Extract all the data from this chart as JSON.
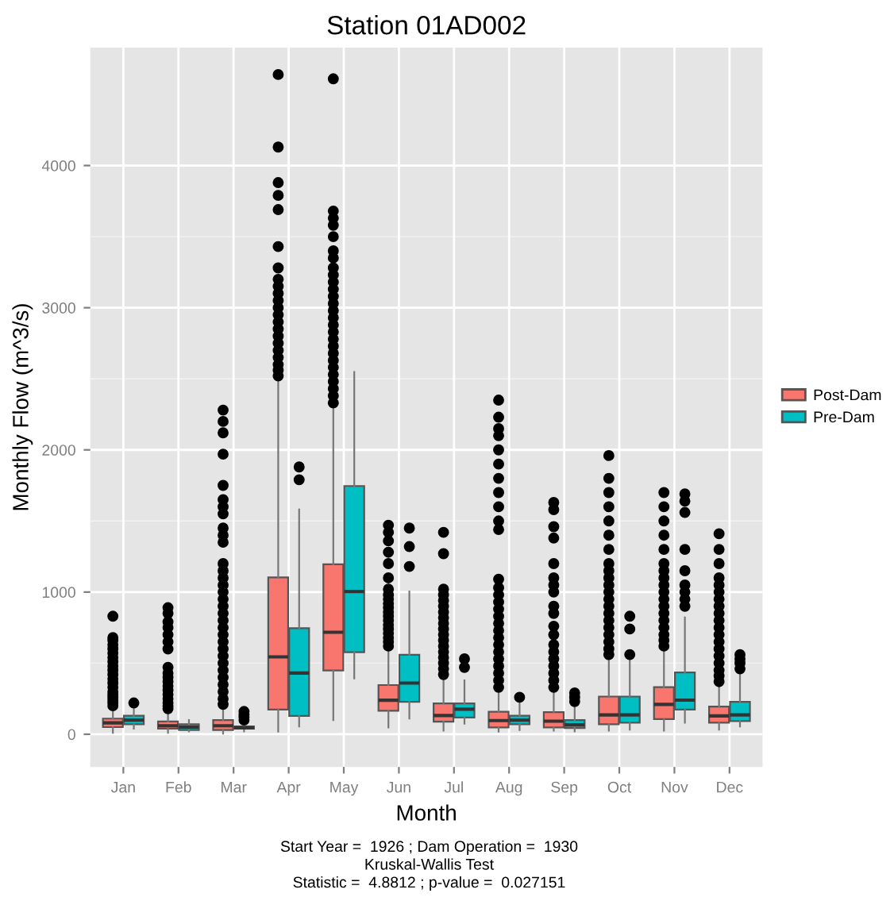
{
  "chart_data": {
    "type": "box",
    "title": "Station 01AD002",
    "xlabel": "Month",
    "ylabel": "Monthly Flow (m^3/s)",
    "categories": [
      "Jan",
      "Feb",
      "Mar",
      "Apr",
      "May",
      "Jun",
      "Jul",
      "Aug",
      "Sep",
      "Oct",
      "Nov",
      "Dec"
    ],
    "ylim": [
      -230,
      4830
    ],
    "yticks": [
      0,
      1000,
      2000,
      3000,
      4000
    ],
    "grid": true,
    "legend": "right",
    "marker": "circle",
    "annotations": [
      "Start Year =  1926 ; Dam Operation =  1930",
      "Kruskal-Wallis Test",
      "Statistic =  4.8812 ; p-value =  0.027151"
    ],
    "series": [
      {
        "name": "Post-Dam",
        "color": "#f8766d",
        "boxes": [
          {
            "low": 10,
            "q1": 50,
            "median": 80,
            "q3": 110,
            "high": 190,
            "outliers": [
              200,
              220,
              240,
              260,
              280,
              300,
              330,
              360,
              390,
              420,
              450,
              480,
              510,
              540,
              570,
              600,
              630,
              660,
              680,
              830
            ]
          },
          {
            "low": 10,
            "q1": 40,
            "median": 60,
            "q3": 90,
            "high": 170,
            "outliers": [
              180,
              200,
              220,
              250,
              280,
              310,
              340,
              370,
              400,
              430,
              470,
              600,
              650,
              700,
              750,
              790,
              850,
              890
            ]
          },
          {
            "low": 5,
            "q1": 30,
            "median": 60,
            "q3": 100,
            "high": 200,
            "outliers": [
              210,
              250,
              300,
              350,
              400,
              450,
              500,
              550,
              600,
              650,
              700,
              750,
              800,
              850,
              900,
              950,
              1000,
              1050,
              1100,
              1150,
              1200,
              1350,
              1400,
              1450,
              1550,
              1600,
              1650,
              1750,
              1970,
              2120,
              2200,
              2280
            ]
          },
          {
            "low": 18,
            "q1": 173,
            "median": 544,
            "q3": 1103,
            "high": 2500,
            "outliers": [
              2520,
              2560,
              2600,
              2650,
              2700,
              2750,
              2800,
              2850,
              2900,
              2950,
              3000,
              3050,
              3100,
              3150,
              3200,
              3280,
              3430,
              3690,
              3790,
              3880,
              4130,
              4640
            ]
          },
          {
            "low": 99,
            "q1": 449,
            "median": 717,
            "q3": 1195,
            "high": 2316,
            "outliers": [
              2330,
              2380,
              2430,
              2480,
              2530,
              2580,
              2630,
              2680,
              2730,
              2780,
              2830,
              2880,
              2930,
              2980,
              3030,
              3080,
              3130,
              3180,
              3230,
              3280,
              3350,
              3400,
              3500,
              3580,
              3630,
              3680,
              4610
            ]
          },
          {
            "low": 48,
            "q1": 165,
            "median": 239,
            "q3": 346,
            "high": 607,
            "outliers": [
              620,
              650,
              680,
              710,
              740,
              770,
              800,
              830,
              860,
              890,
              920,
              950,
              980,
              1020,
              1100,
              1200,
              1280,
              1360,
              1420,
              1470
            ]
          },
          {
            "low": 26,
            "q1": 88,
            "median": 132,
            "q3": 217,
            "high": 404,
            "outliers": [
              420,
              460,
              500,
              540,
              580,
              620,
              660,
              700,
              740,
              780,
              820,
              860,
              900,
              940,
              980,
              1020,
              1270,
              1420
            ]
          },
          {
            "low": 18,
            "q1": 48,
            "median": 96,
            "q3": 158,
            "high": 312,
            "outliers": [
              330,
              380,
              430,
              480,
              530,
              580,
              630,
              680,
              730,
              780,
              830,
              880,
              930,
              980,
              1030,
              1090,
              1440,
              1500,
              1600,
              1700,
              1800,
              1900,
              2000,
              2100,
              2150,
              2230,
              2350
            ]
          },
          {
            "low": 26,
            "q1": 48,
            "median": 92,
            "q3": 155,
            "high": 313,
            "outliers": [
              330,
              380,
              430,
              480,
              530,
              580,
              630,
              700,
              760,
              850,
              900,
              1000,
              1050,
              1100,
              1200,
              1380,
              1460,
              1580,
              1630
            ]
          },
          {
            "low": 26,
            "q1": 70,
            "median": 136,
            "q3": 265,
            "high": 534,
            "outliers": [
              560,
              600,
              650,
              700,
              750,
              800,
              850,
              900,
              950,
              1000,
              1050,
              1100,
              1150,
              1200,
              1300,
              1400,
              1500,
              1600,
              1700,
              1800,
              1960
            ]
          },
          {
            "low": 26,
            "q1": 107,
            "median": 210,
            "q3": 331,
            "high": 608,
            "outliers": [
              620,
              660,
              700,
              750,
              800,
              850,
              900,
              950,
              1000,
              1050,
              1100,
              1150,
              1200,
              1300,
              1400,
              1500,
              1600,
              1700
            ]
          },
          {
            "low": 33,
            "q1": 81,
            "median": 129,
            "q3": 195,
            "high": 357,
            "outliers": [
              370,
              410,
              450,
              500,
              550,
              600,
              650,
              700,
              750,
              800,
              850,
              900,
              950,
              1000,
              1050,
              1100,
              1200,
              1300,
              1410
            ]
          }
        ]
      },
      {
        "name": "Pre-Dam",
        "color": "#00bfc4",
        "boxes": [
          {
            "low": 40,
            "q1": 70,
            "median": 100,
            "q3": 130,
            "high": 200,
            "outliers": [
              220
            ]
          },
          {
            "low": 20,
            "q1": 30,
            "median": 50,
            "q3": 70,
            "high": 100
          },
          {
            "low": 20,
            "q1": 40,
            "median": 45,
            "q3": 55,
            "high": 70,
            "outliers": [
              100,
              120,
              140,
              160
            ]
          },
          {
            "low": 55,
            "q1": 129,
            "median": 430,
            "q3": 746,
            "high": 1581,
            "outliers": [
              1790,
              1880
            ]
          },
          {
            "low": 393,
            "q1": 577,
            "median": 1004,
            "q3": 1746,
            "high": 2548
          },
          {
            "low": 110,
            "q1": 228,
            "median": 360,
            "q3": 559,
            "high": 1004,
            "outliers": [
              1180,
              1320,
              1450
            ]
          },
          {
            "low": 74,
            "q1": 118,
            "median": 176,
            "q3": 217,
            "high": 379,
            "outliers": [
              470,
              530
            ]
          },
          {
            "low": 30,
            "q1": 70,
            "median": 100,
            "q3": 130,
            "high": 220,
            "outliers": [
              260
            ]
          },
          {
            "low": 20,
            "q1": 44,
            "median": 66,
            "q3": 99,
            "high": 190,
            "outliers": [
              230,
              260,
              290
            ]
          },
          {
            "low": 33,
            "q1": 81,
            "median": 136,
            "q3": 265,
            "high": 523,
            "outliers": [
              560,
              740,
              830
            ]
          },
          {
            "low": 81,
            "q1": 173,
            "median": 240,
            "q3": 435,
            "high": 821,
            "outliers": [
              900,
              950,
              1000,
              1050,
              1150,
              1300,
              1560,
              1640,
              1690
            ]
          },
          {
            "low": 55,
            "q1": 92,
            "median": 136,
            "q3": 228,
            "high": 420,
            "outliers": [
              460,
              500,
              530,
              560
            ]
          }
        ]
      }
    ]
  }
}
